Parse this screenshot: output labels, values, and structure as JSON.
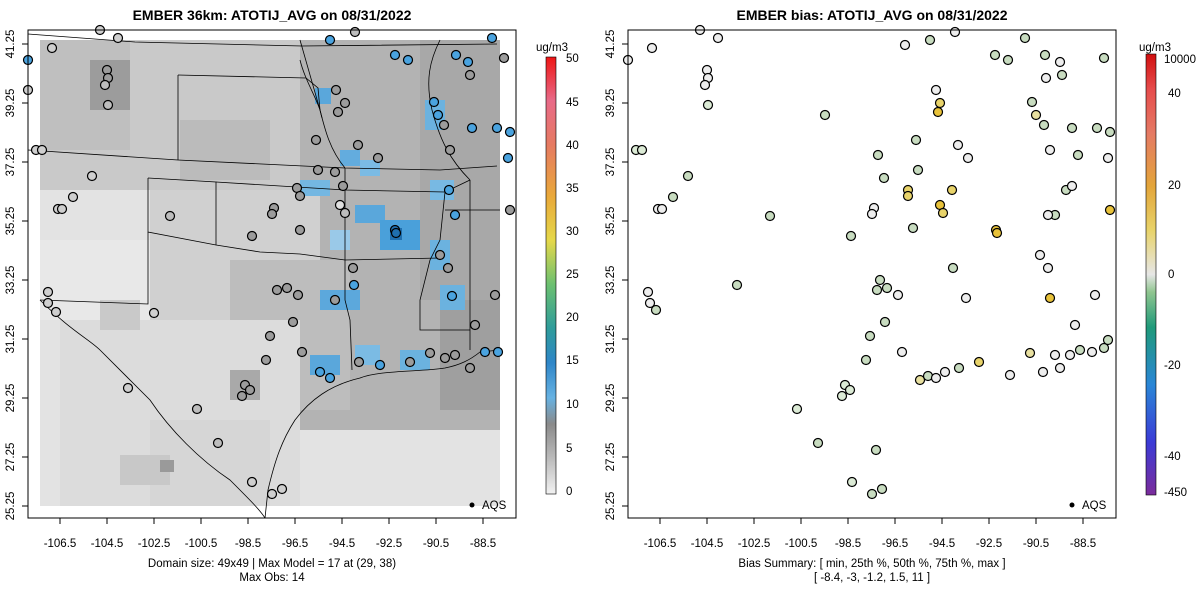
{
  "left_panel": {
    "title": "EMBER 36km: ATOTIJ_AVG on 08/31/2022",
    "footer_line1": "Domain size: 49x49 | Max Model = 17 at (29, 38)",
    "footer_line2": "Max Obs: 14",
    "legend_label": "AQS",
    "colorbar_unit": "ug/m3",
    "colorbar_ticks": [
      "50",
      "45",
      "40",
      "35",
      "30",
      "25",
      "20",
      "15",
      "10",
      "5",
      "0"
    ]
  },
  "right_panel": {
    "title": "EMBER bias: ATOTIJ_AVG on 08/31/2022",
    "footer_line1": "Bias Summary: [ min, 25th %, 50th %, 75th %, max ]",
    "footer_line2": "[ -8.4,   -3,   -1.2,   1.5,   11 ]",
    "legend_label": "AQS",
    "colorbar_unit": "ug/m3",
    "colorbar_ticks": [
      "10000",
      "40",
      "20",
      "0",
      "-20",
      "-40",
      "-450"
    ]
  },
  "axes": {
    "x_ticks": [
      "-106.5",
      "-104.5",
      "-102.5",
      "-100.5",
      "-98.5",
      "-96.5",
      "-94.5",
      "-92.5",
      "-90.5",
      "-88.5"
    ],
    "y_ticks": [
      "41.25",
      "39.25",
      "37.25",
      "35.25",
      "33.25",
      "31.25",
      "29.25",
      "27.25",
      "25.25"
    ]
  },
  "colors": {
    "land_gray_light": "#e6e6e6",
    "land_gray_mid": "#bdbdbd",
    "land_gray_dark": "#9a9a9a",
    "blue_high": "#4aa3df",
    "bias_green": "#c8dcc0",
    "bias_yellow": "#e8c23a"
  }
}
